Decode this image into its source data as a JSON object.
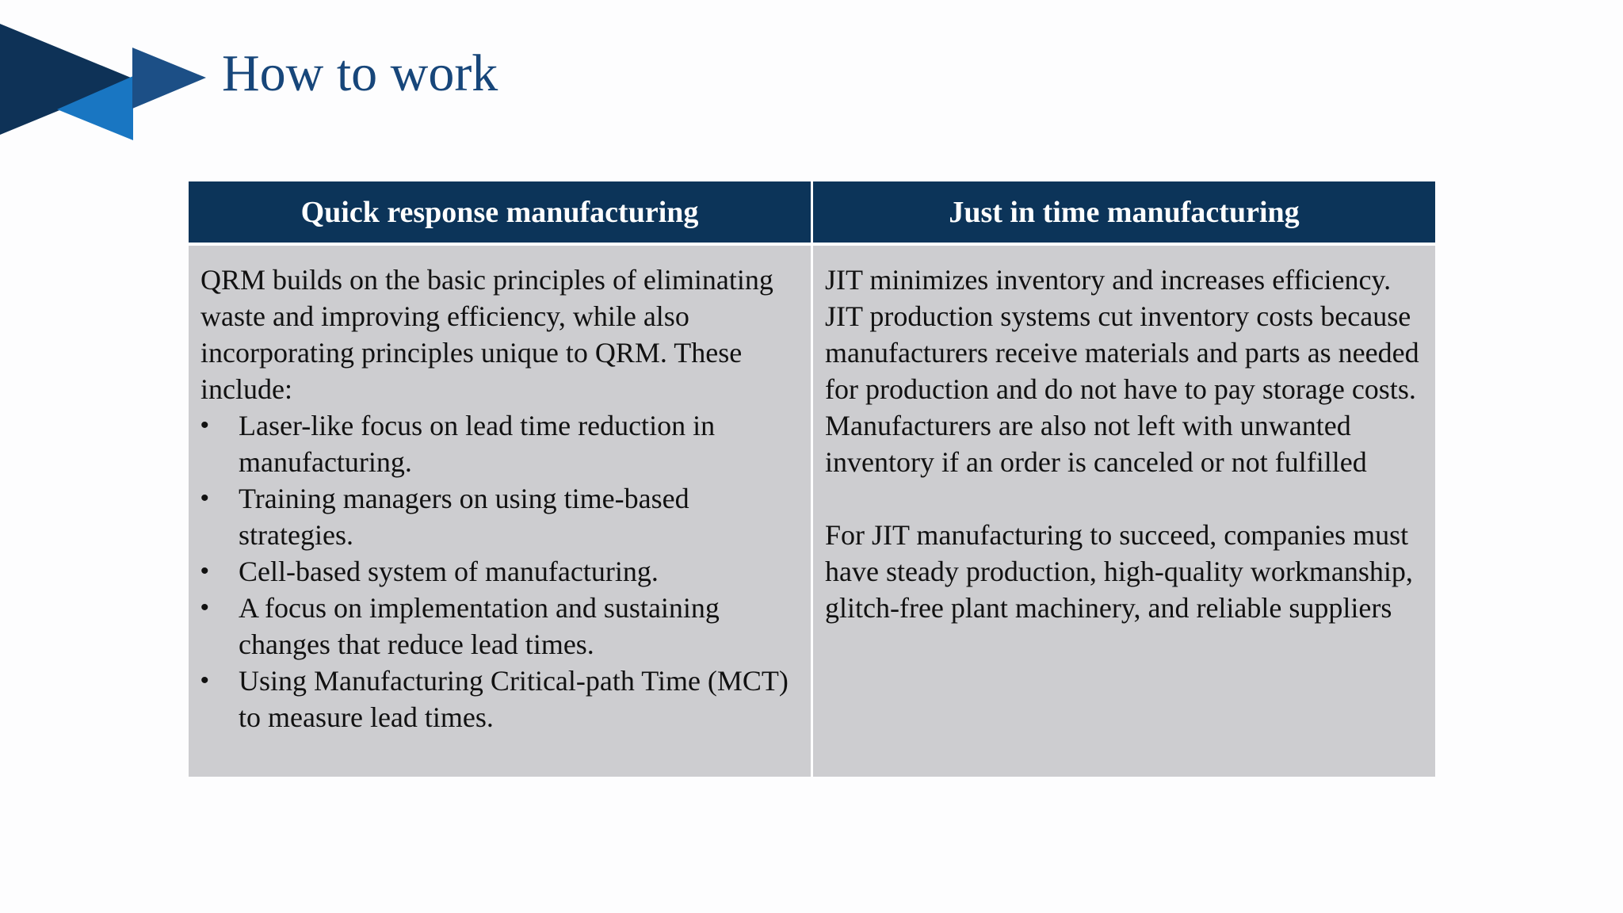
{
  "slide": {
    "title": "How to work"
  },
  "logo": {
    "colors": [
      "#0e3257",
      "#1c4f86",
      "#1976c2"
    ]
  },
  "table": {
    "header_bg": "#0c3459",
    "cell_bg": "#cdcdd0",
    "headers": [
      "Quick response manufacturing",
      "Just in time manufacturing"
    ],
    "qrm": {
      "intro": "QRM builds on the basic principles of eliminating waste and improving efficiency, while also incorporating principles unique to QRM. These include:",
      "bullets": [
        "Laser-like focus on lead time reduction in manufacturing.",
        "Training managers on using time-based strategies.",
        "Cell-based system of manufacturing.",
        "A focus on implementation and sustaining changes that reduce lead times.",
        "Using Manufacturing Critical-path Time (MCT) to measure lead times."
      ]
    },
    "jit": {
      "paragraphs": [
        "JIT minimizes inventory and increases efficiency. JIT production systems cut inventory costs because manufacturers receive materials and parts as needed for production and do not have to pay storage costs. Manufacturers are also not left with unwanted inventory if an order is canceled or not fulfilled",
        "For JIT manufacturing to succeed, companies must have steady production, high-quality workmanship, glitch-free plant machinery, and reliable suppliers"
      ]
    }
  }
}
